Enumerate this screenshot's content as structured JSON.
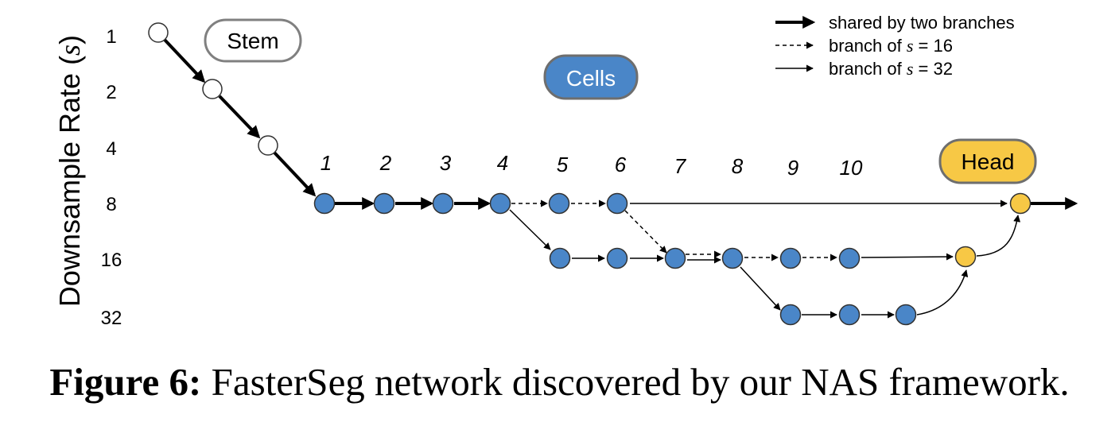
{
  "y_axis": {
    "title": "Downsample Rate (s)",
    "title_prefix": "Downsample Rate (",
    "title_var": "s",
    "title_suffix": ")",
    "ticks": [
      "1",
      "2",
      "4",
      "8",
      "16",
      "32"
    ]
  },
  "cell_indices": [
    "1",
    "2",
    "3",
    "4",
    "5",
    "6",
    "7",
    "8",
    "9",
    "10"
  ],
  "boxes": {
    "stem": "Stem",
    "cells": "Cells",
    "head": "Head"
  },
  "legend": [
    {
      "style": "thick",
      "text": "shared by two branches"
    },
    {
      "style": "dashed",
      "text_prefix": "branch of ",
      "var": "s",
      "text_suffix": " = 16"
    },
    {
      "style": "thin",
      "text_prefix": "branch of ",
      "var": "s",
      "text_suffix": " = 32"
    }
  ],
  "colors": {
    "stem_node": "#ffffff",
    "cell_node": "#4a86c8",
    "head_node": "#f7c845",
    "cells_box": "#4a86c8",
    "head_box": "#f7c845",
    "edge": "#000000"
  },
  "caption": {
    "label": "Figure 6:",
    "text": " FasterSeg network discovered by our NAS framework."
  }
}
